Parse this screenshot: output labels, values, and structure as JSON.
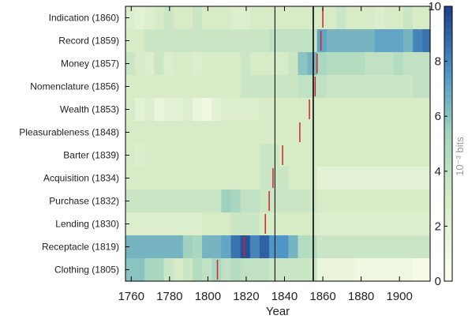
{
  "chart_data": {
    "type": "heatmap",
    "title": "",
    "xlabel": "Year",
    "x_ticks": [
      1760,
      1780,
      1800,
      1820,
      1840,
      1860,
      1880,
      1900
    ],
    "xlim": [
      1757,
      1916
    ],
    "bin_years": 5,
    "row_labels": [
      "Indication (1860)",
      "Record (1859)",
      "Money (1857)",
      "Nomenclature (1856)",
      "Wealth (1853)",
      "Pleasurableness (1848)",
      "Barter (1839)",
      "Acquisition (1834)",
      "Purchase (1832)",
      "Lending (1830)",
      "Receptacle (1819)",
      "Clothing (1805)"
    ],
    "event_years": [
      1860,
      1859,
      1857,
      1856,
      1853,
      1848,
      1839,
      1834,
      1832,
      1830,
      1819,
      1805
    ],
    "reference_lines": [
      1835,
      1855
    ],
    "colorbar": {
      "label": "10⁻³ bits",
      "min": 0,
      "max": 10,
      "ticks": [
        0,
        2,
        4,
        6,
        8,
        10
      ]
    },
    "colors": {
      "event_marker": "#d2232a",
      "reference_line": "#000000",
      "scale_low": "#fdfff0",
      "scale_mid": "#9ed2be",
      "scale_high": "#1c3f8c"
    },
    "grid": false,
    "values": [
      [
        2.5,
        2.0,
        2.5,
        3.0,
        3.5,
        3.0,
        3.0,
        3.5,
        3.0,
        3.0,
        3.0,
        2.5,
        2.5,
        3.0,
        3.0,
        3.0,
        3.0,
        3.0,
        3.0,
        3.0,
        3.0,
        3.0,
        3.5,
        3.0,
        3.0,
        3.0,
        2.5,
        3.0,
        3.0,
        3.5,
        3.0,
        3.0
      ],
      [
        3.0,
        3.0,
        3.5,
        3.5,
        3.5,
        3.5,
        3.5,
        3.5,
        3.5,
        3.5,
        3.5,
        3.5,
        3.5,
        3.5,
        3.5,
        4.0,
        4.0,
        4.0,
        4.0,
        4.0,
        7.0,
        6.5,
        6.5,
        6.5,
        6.5,
        6.5,
        7.0,
        7.0,
        7.0,
        6.5,
        8.0,
        8.5
      ],
      [
        3.5,
        3.0,
        2.5,
        3.5,
        2.5,
        3.0,
        3.0,
        2.5,
        3.0,
        3.0,
        3.0,
        3.0,
        3.5,
        3.0,
        3.0,
        3.0,
        3.0,
        3.5,
        6.0,
        6.5,
        5.0,
        4.5,
        4.5,
        4.5,
        4.5,
        4.0,
        4.0,
        4.0,
        4.5,
        4.0,
        4.0,
        4.0
      ],
      [
        3.0,
        3.0,
        3.0,
        3.0,
        3.0,
        3.0,
        3.0,
        3.0,
        3.0,
        3.0,
        3.0,
        3.0,
        3.5,
        3.5,
        3.5,
        3.5,
        3.5,
        3.5,
        4.0,
        4.0,
        4.0,
        3.5,
        3.5,
        3.5,
        3.5,
        3.5,
        3.5,
        3.5,
        3.5,
        3.5,
        4.0,
        4.0
      ],
      [
        3.0,
        2.0,
        2.5,
        1.5,
        2.0,
        2.0,
        2.5,
        1.5,
        1.0,
        2.0,
        2.5,
        2.5,
        2.5,
        2.5,
        3.0,
        3.0,
        3.0,
        3.0,
        3.0,
        3.0,
        3.0,
        3.0,
        3.0,
        3.0,
        3.0,
        3.0,
        3.0,
        3.0,
        3.0,
        3.0,
        3.0,
        3.0
      ],
      [
        3.0,
        3.0,
        3.0,
        3.0,
        3.0,
        3.0,
        3.0,
        3.0,
        3.0,
        3.0,
        3.0,
        3.0,
        3.0,
        3.0,
        3.0,
        3.0,
        3.0,
        3.0,
        3.0,
        3.0,
        3.0,
        3.0,
        3.0,
        3.0,
        3.0,
        3.0,
        3.0,
        3.0,
        3.0,
        3.0,
        3.0,
        3.0
      ],
      [
        3.0,
        2.5,
        3.0,
        3.0,
        3.0,
        3.0,
        3.0,
        3.0,
        3.0,
        3.0,
        3.0,
        3.0,
        3.0,
        3.0,
        3.5,
        3.5,
        3.0,
        3.0,
        3.0,
        3.0,
        3.0,
        3.0,
        3.0,
        3.0,
        3.0,
        3.0,
        3.0,
        3.0,
        3.0,
        3.0,
        3.0,
        3.0
      ],
      [
        3.0,
        3.0,
        3.0,
        3.0,
        3.0,
        3.0,
        3.0,
        3.0,
        3.0,
        3.0,
        3.0,
        3.0,
        3.0,
        3.0,
        3.5,
        3.5,
        3.5,
        3.0,
        3.0,
        3.0,
        2.0,
        2.0,
        2.0,
        2.0,
        2.0,
        2.0,
        2.0,
        2.0,
        2.0,
        2.0,
        2.0,
        2.0
      ],
      [
        3.5,
        3.5,
        3.5,
        3.5,
        3.5,
        3.5,
        3.5,
        3.5,
        3.5,
        3.5,
        5.5,
        5.0,
        4.0,
        4.0,
        3.5,
        3.5,
        3.5,
        3.5,
        3.5,
        3.5,
        3.0,
        3.0,
        3.0,
        3.0,
        3.0,
        3.0,
        3.0,
        3.0,
        3.0,
        3.0,
        3.0,
        3.0
      ],
      [
        2.5,
        2.5,
        2.5,
        2.5,
        2.5,
        2.5,
        2.5,
        2.5,
        3.0,
        3.0,
        3.0,
        3.5,
        3.5,
        3.5,
        3.0,
        3.0,
        3.0,
        3.0,
        3.0,
        3.0,
        2.5,
        2.5,
        2.5,
        2.5,
        2.5,
        2.5,
        2.5,
        2.5,
        2.5,
        2.5,
        2.5,
        2.5
      ],
      [
        6.5,
        6.5,
        6.5,
        6.5,
        6.5,
        6.5,
        5.5,
        5.0,
        6.5,
        6.5,
        7.0,
        8.5,
        9.5,
        8.0,
        9.0,
        7.5,
        7.5,
        6.5,
        4.5,
        4.5,
        3.5,
        3.5,
        3.5,
        3.5,
        3.5,
        3.5,
        3.5,
        3.5,
        3.5,
        3.5,
        3.5,
        3.5
      ],
      [
        6.0,
        6.0,
        5.0,
        5.0,
        3.5,
        3.0,
        3.5,
        4.5,
        4.0,
        5.0,
        4.0,
        4.5,
        4.0,
        4.0,
        4.0,
        3.5,
        3.5,
        3.5,
        3.5,
        3.5,
        1.5,
        1.5,
        1.5,
        1.5,
        1.0,
        1.0,
        1.0,
        1.0,
        1.0,
        1.0,
        0.5,
        0.5
      ]
    ]
  }
}
